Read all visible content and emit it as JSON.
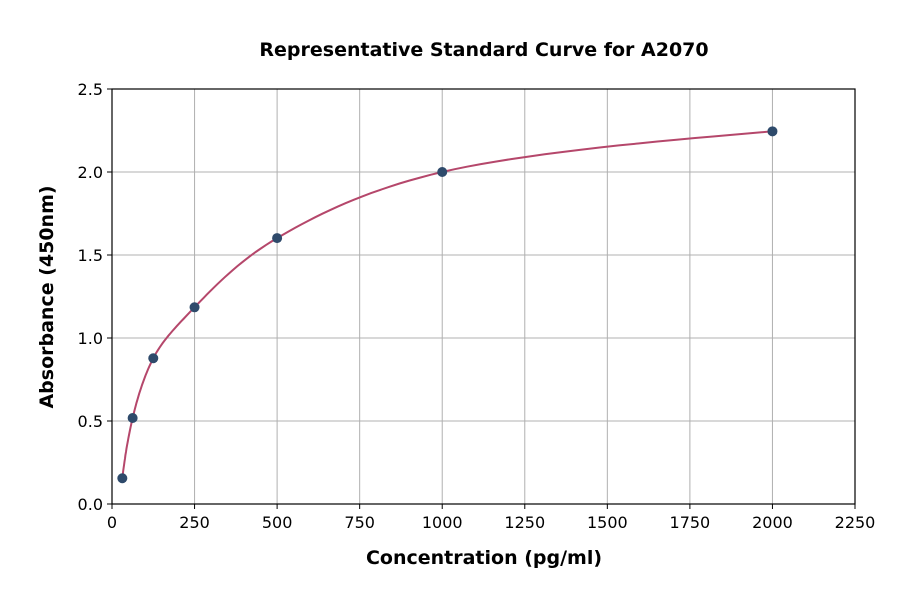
{
  "chart_data": {
    "type": "scatter",
    "title": "Representative Standard Curve for A2070",
    "xlabel": "Concentration (pg/ml)",
    "ylabel": "Absorbance (450nm)",
    "xlim": [
      0,
      2250
    ],
    "ylim": [
      0,
      2.5
    ],
    "xticks": [
      0,
      250,
      500,
      750,
      1000,
      1250,
      1500,
      1750,
      2000,
      2250
    ],
    "yticks": [
      "0.0",
      "0.5",
      "1.0",
      "1.5",
      "2.0",
      "2.5"
    ],
    "grid": true,
    "points": {
      "x": [
        31.25,
        62.5,
        125,
        250,
        500,
        1000,
        2000
      ],
      "y": [
        0.155,
        0.518,
        0.878,
        1.185,
        1.602,
        2.0,
        2.245
      ]
    },
    "fit_curve": true,
    "colors": {
      "points": "#2e4a6b",
      "curve": "#b5476b",
      "grid": "#b0b0b0"
    }
  }
}
